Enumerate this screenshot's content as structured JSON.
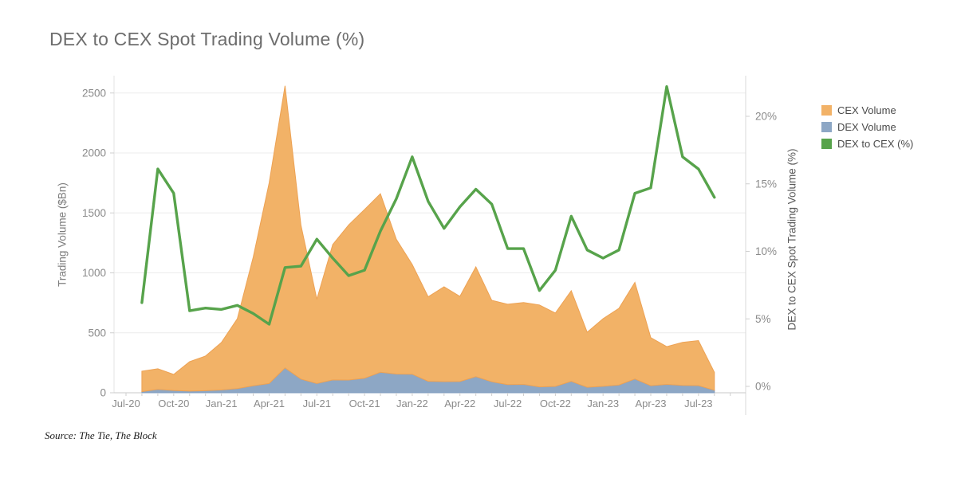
{
  "header": {
    "title": "DEX to CEX Spot Trading Volume (%)"
  },
  "source_note": "Source: The Tie, The Block",
  "legend": {
    "items": [
      {
        "label": "CEX Volume",
        "color": "#F2B267"
      },
      {
        "label": "DEX Volume",
        "color": "#8DA7C5"
      },
      {
        "label": "DEX to CEX (%)",
        "color": "#57A34B"
      }
    ]
  },
  "chart_data": {
    "type": "area",
    "subtype": "stacked-area-with-dual-axis-line",
    "title": "DEX to CEX Spot Trading Volume (%)",
    "x": [
      "Aug-20",
      "Sep-20",
      "Oct-20",
      "Nov-20",
      "Dec-20",
      "Jan-21",
      "Feb-21",
      "Mar-21",
      "Apr-21",
      "May-21",
      "Jun-21",
      "Jul-21",
      "Aug-21",
      "Sep-21",
      "Oct-21",
      "Nov-21",
      "Dec-21",
      "Jan-22",
      "Feb-22",
      "Mar-22",
      "Apr-22",
      "May-22",
      "Jun-22",
      "Jul-22",
      "Aug-22",
      "Sep-22",
      "Oct-22",
      "Nov-22",
      "Dec-22",
      "Jan-23",
      "Feb-23",
      "Mar-23",
      "Apr-23",
      "May-23",
      "Jun-23",
      "Jul-23",
      "Aug-23"
    ],
    "x_axis": {
      "tick_labels": [
        "Jul-20",
        "Oct-20",
        "Jan-21",
        "Apr-21",
        "Jul-21",
        "Oct-21",
        "Jan-22",
        "Apr-22",
        "Jul-22",
        "Oct-22",
        "Jan-23",
        "Apr-23",
        "Jul-23"
      ]
    },
    "stacked": true,
    "series": [
      {
        "name": "DEX Volume",
        "type": "area",
        "axis": "left",
        "color": "#8DA7C5",
        "edge": "#7E9BBF",
        "values": [
          10,
          28,
          19,
          14,
          17,
          23,
          35,
          58,
          77,
          207,
          114,
          77,
          107,
          106,
          121,
          171,
          156,
          155,
          96,
          93,
          94,
          134,
          92,
          68,
          70,
          49,
          53,
          95,
          46,
          54,
          65,
          115,
          59,
          70,
          61,
          60,
          21
        ]
      },
      {
        "name": "CEX Volume",
        "type": "area",
        "axis": "left",
        "color": "#F2B267",
        "edge": "#EDA254",
        "values": [
          170,
          172,
          134,
          245,
          289,
          396,
          583,
          1072,
          1673,
          2353,
          1286,
          703,
          1129,
          1294,
          1407,
          1489,
          1124,
          915,
          704,
          791,
          710,
          916,
          679,
          670,
          682,
          683,
          612,
          756,
          459,
          564,
          639,
          805,
          401,
          315,
          359,
          375,
          149
        ]
      },
      {
        "name": "DEX to CEX (%)",
        "type": "line",
        "axis": "right",
        "color": "#57A34B",
        "values": [
          6.2,
          16.1,
          14.3,
          5.6,
          5.8,
          5.7,
          6.0,
          5.4,
          4.6,
          8.8,
          8.9,
          10.9,
          9.5,
          8.2,
          8.6,
          11.5,
          13.9,
          17.0,
          13.7,
          11.7,
          13.3,
          14.6,
          13.5,
          10.2,
          10.2,
          7.1,
          8.6,
          12.6,
          10.1,
          9.5,
          10.1,
          14.3,
          14.7,
          22.2,
          17.0,
          16.1,
          14.0
        ]
      }
    ],
    "y_left": {
      "label": "Trading Volume ($Bn)",
      "ticks": [
        0,
        500,
        1000,
        1500,
        2000,
        2500
      ]
    },
    "y_right": {
      "label": "DEX to CEX Spot Trading Volume (%)",
      "ticks": [
        0,
        5,
        10,
        15,
        20
      ],
      "suffix": "%"
    },
    "grid": "horizontal-only",
    "legend_position": "top-right-outside"
  }
}
